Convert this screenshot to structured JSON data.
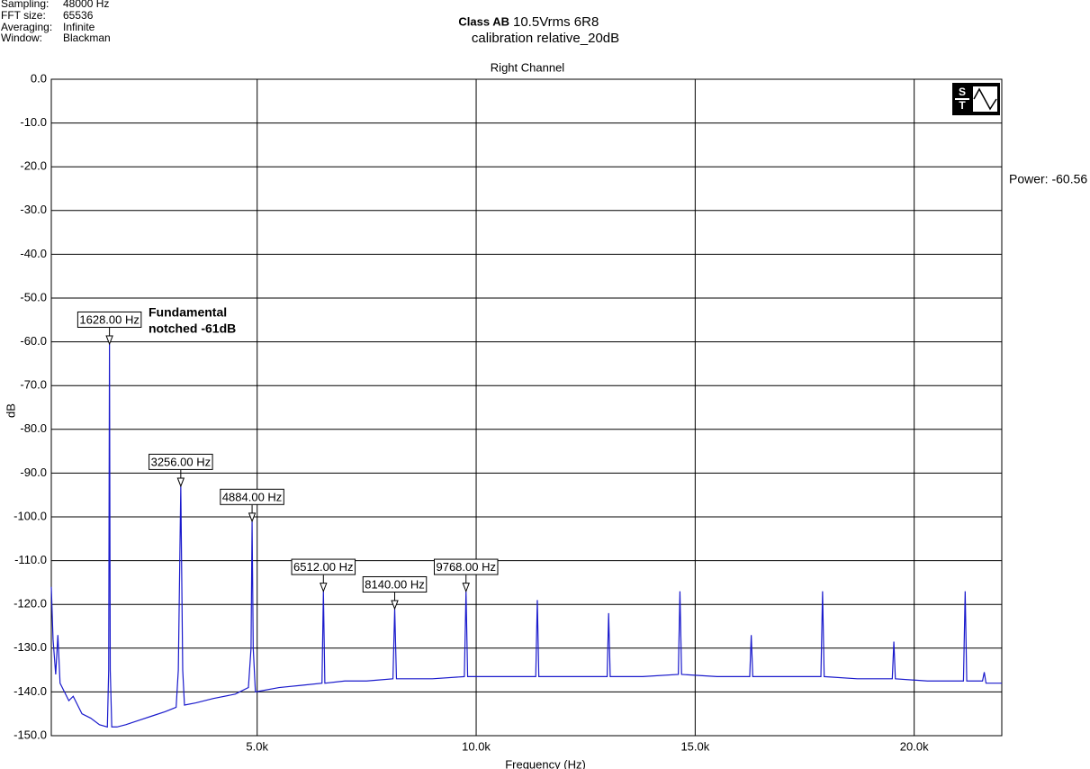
{
  "header": {
    "rows": [
      [
        "Sampling:",
        "48000 Hz"
      ],
      [
        "FFT size:",
        "65536"
      ],
      [
        "Averaging:",
        "Infinite"
      ],
      [
        "Window:",
        "Blackman"
      ]
    ]
  },
  "power_readout": "Power: -60.56",
  "chart_data": {
    "type": "line",
    "title_bold": "Class AB",
    "title": "10.5Vrms 6R8",
    "subtitle": "calibration relative_20dB",
    "chart_title": "Right Channel",
    "x_label": "Frequency (Hz)",
    "y_label": "dB",
    "annotation": [
      "Fundamental",
      "notched -61dB"
    ],
    "xlim": [
      300,
      22000
    ],
    "ylim": [
      -150,
      0
    ],
    "xticks": [
      {
        "value": 5000,
        "label": "5.0k"
      },
      {
        "value": 10000,
        "label": "10.0k"
      },
      {
        "value": 15000,
        "label": "15.0k"
      },
      {
        "value": 20000,
        "label": "20.0k"
      }
    ],
    "yticks": [
      {
        "value": 0,
        "label": "0.0"
      },
      {
        "value": -10,
        "label": "-10.0"
      },
      {
        "value": -20,
        "label": "-20.0"
      },
      {
        "value": -30,
        "label": "-30.0"
      },
      {
        "value": -40,
        "label": "-40.0"
      },
      {
        "value": -50,
        "label": "-50.0"
      },
      {
        "value": -60,
        "label": "-60.0"
      },
      {
        "value": -70,
        "label": "-70.0"
      },
      {
        "value": -80,
        "label": "-80.0"
      },
      {
        "value": -90,
        "label": "-90.0"
      },
      {
        "value": -100,
        "label": "-100.0"
      },
      {
        "value": -110,
        "label": "-110.0"
      },
      {
        "value": -120,
        "label": "-120.0"
      },
      {
        "value": -130,
        "label": "-130.0"
      },
      {
        "value": -140,
        "label": "-140.0"
      },
      {
        "value": -150,
        "label": "-150.0"
      }
    ],
    "grid": true,
    "x": [
      300,
      340,
      400,
      450,
      500,
      600,
      700,
      800,
      900,
      1000,
      1200,
      1400,
      1580,
      1610,
      1628,
      1646,
      1680,
      1800,
      2000,
      2300,
      2600,
      2900,
      3150,
      3200,
      3256,
      3300,
      3340,
      3600,
      4000,
      4500,
      4800,
      4860,
      4884,
      4910,
      4960,
      5500,
      6000,
      6480,
      6512,
      6545,
      7000,
      7500,
      8100,
      8140,
      8180,
      9000,
      9730,
      9768,
      9805,
      10500,
      11360,
      11396,
      11430,
      12200,
      12990,
      13024,
      13060,
      13800,
      14615,
      14652,
      14690,
      15500,
      16245,
      16280,
      16315,
      17100,
      17870,
      17908,
      17945,
      18700,
      19500,
      19536,
      19570,
      20300,
      21125,
      21164,
      21200,
      21560,
      21600,
      21640,
      22000
    ],
    "series": [
      {
        "name": "Right Channel",
        "color": "#1a1acc",
        "values": [
          -116,
          -128,
          -136,
          -127,
          -138,
          -140,
          -142,
          -141,
          -143,
          -145,
          -146,
          -147.5,
          -148,
          -135,
          -60.5,
          -135,
          -148,
          -148,
          -147.5,
          -146.5,
          -145.5,
          -144.5,
          -143.5,
          -135,
          -93,
          -135,
          -143,
          -142.5,
          -141.5,
          -140.5,
          -139,
          -130,
          -101,
          -130,
          -140,
          -139,
          -138.5,
          -138,
          -117,
          -138,
          -137.5,
          -137.5,
          -137,
          -121,
          -137,
          -137,
          -136.5,
          -117,
          -136.5,
          -136.5,
          -136.5,
          -119,
          -136.5,
          -136.5,
          -136.5,
          -122,
          -136.5,
          -136.5,
          -136,
          -117,
          -136,
          -136.5,
          -136.5,
          -127,
          -136.5,
          -136.5,
          -136.5,
          -117,
          -136.5,
          -137,
          -137,
          -128.5,
          -137,
          -137.5,
          -137.5,
          -117,
          -137.5,
          -137.5,
          -135.5,
          -138,
          -138
        ]
      }
    ],
    "markers": [
      {
        "label": "1628.00 Hz",
        "x": 1628,
        "y": -60.5
      },
      {
        "label": "3256.00 Hz",
        "x": 3256,
        "y": -93
      },
      {
        "label": "4884.00 Hz",
        "x": 4884,
        "y": -101
      },
      {
        "label": "6512.00 Hz",
        "x": 6512,
        "y": -117
      },
      {
        "label": "8140.00 Hz",
        "x": 8140,
        "y": -121
      },
      {
        "label": "9768.00 Hz",
        "x": 9768,
        "y": -117
      }
    ]
  }
}
